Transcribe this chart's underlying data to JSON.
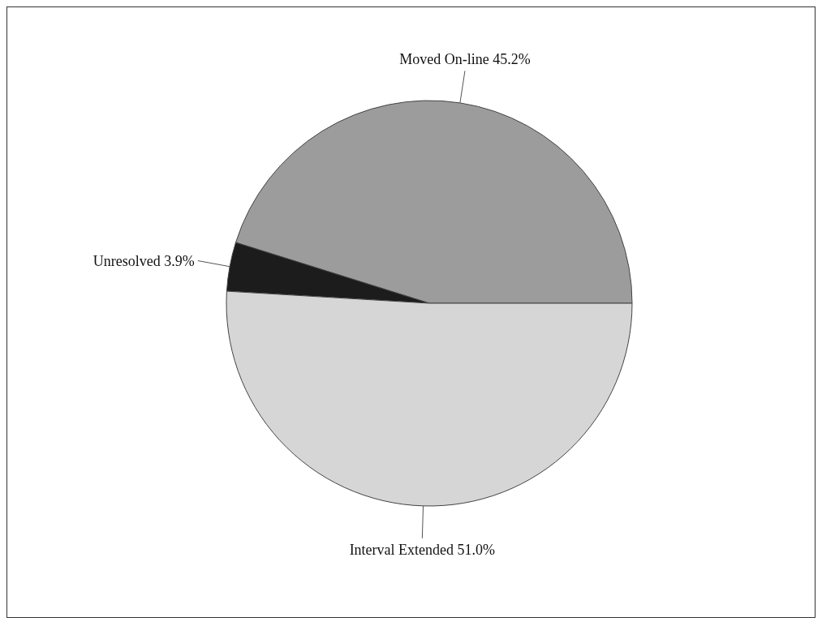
{
  "chart_data": {
    "type": "pie",
    "categories": [
      "Moved On-line",
      "Unresolved",
      "Interval Extended"
    ],
    "values": [
      45.2,
      3.9,
      51.0
    ],
    "value_labels": [
      "45.2%",
      "3.9%",
      "51.0%"
    ],
    "colors": [
      "#9c9c9c",
      "#1c1c1c",
      "#d6d6d6"
    ],
    "legend": false
  }
}
